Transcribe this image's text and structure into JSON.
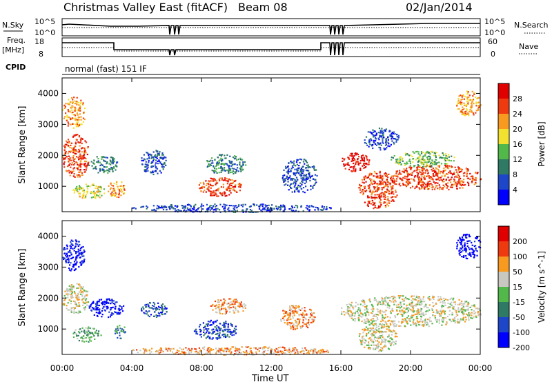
{
  "header": {
    "station": "Christmas Valley East (fitACF)",
    "beam": "Beam 08",
    "date": "02/Jan/2014"
  },
  "top_panels": {
    "nsky_label": "N.Sky",
    "nsky_ticks": [
      "10^5",
      "10^0"
    ],
    "nsearch_label": "N.Search",
    "freq_label_1": "Freq.",
    "freq_label_2": "[MHz]",
    "freq_ticks": [
      "18",
      "8"
    ],
    "nave_ticks": [
      "60",
      "0"
    ],
    "nave_label": "Nave",
    "cpid_label": "CPID",
    "cpid_value": "normal (fast) 151 IF"
  },
  "chart_data": [
    {
      "type": "heatmap",
      "quantity": "Power",
      "ylabel": "Slant Range [km]",
      "xlabel": "Time UT",
      "x_ticks": [
        "00:00",
        "04:00",
        "08:00",
        "12:00",
        "16:00",
        "20:00",
        "00:00"
      ],
      "xlim_hours": [
        0,
        24
      ],
      "y_ticks": [
        1000,
        2000,
        3000,
        4000
      ],
      "ylim": [
        180,
        4500
      ],
      "colorbar": {
        "label": "Power [dB]",
        "ticks": [
          "4",
          "8",
          "12",
          "16",
          "20",
          "24",
          "28"
        ],
        "colors": [
          "#0000ff",
          "#1e46c8",
          "#2f7a64",
          "#52b84a",
          "#f2e12e",
          "#f79a1f",
          "#ef3a10",
          "#e00000"
        ]
      },
      "regions": [
        {
          "t0": 0.0,
          "t1": 1.3,
          "r0": 2900,
          "r1": 3900,
          "level": 5
        },
        {
          "t0": 0.0,
          "t1": 1.5,
          "r0": 1300,
          "r1": 2700,
          "level": 6
        },
        {
          "t0": 0.6,
          "t1": 2.4,
          "r0": 600,
          "r1": 1100,
          "level": 4
        },
        {
          "t0": 1.5,
          "t1": 3.2,
          "r0": 1450,
          "r1": 2000,
          "level": 2
        },
        {
          "t0": 2.6,
          "t1": 3.6,
          "r0": 650,
          "r1": 1200,
          "level": 5
        },
        {
          "t0": 4.5,
          "t1": 6.0,
          "r0": 1400,
          "r1": 2200,
          "level": 1
        },
        {
          "t0": 7.8,
          "t1": 10.3,
          "r0": 700,
          "r1": 1300,
          "level": 6
        },
        {
          "t0": 8.2,
          "t1": 10.5,
          "r0": 1400,
          "r1": 2050,
          "level": 2
        },
        {
          "t0": 12.6,
          "t1": 14.6,
          "r0": 800,
          "r1": 1900,
          "level": 1
        },
        {
          "t0": 16.0,
          "t1": 17.6,
          "r0": 1500,
          "r1": 2100,
          "level": 7
        },
        {
          "t0": 17.0,
          "t1": 19.2,
          "r0": 300,
          "r1": 1500,
          "level": 6
        },
        {
          "t0": 18.8,
          "t1": 24.0,
          "r0": 900,
          "r1": 1700,
          "level": 6
        },
        {
          "t0": 18.8,
          "t1": 22.5,
          "r0": 1650,
          "r1": 2150,
          "level": 3
        },
        {
          "t0": 17.3,
          "t1": 19.3,
          "r0": 2200,
          "r1": 2900,
          "level": 1
        },
        {
          "t0": 22.6,
          "t1": 24.0,
          "r0": 3300,
          "r1": 4100,
          "level": 5
        },
        {
          "t0": 4.0,
          "t1": 15.5,
          "r0": 180,
          "r1": 450,
          "level": 1
        }
      ]
    },
    {
      "type": "heatmap",
      "quantity": "Velocity",
      "ylabel": "Slant Range [km]",
      "xlabel": "Time UT",
      "x_ticks": [
        "00:00",
        "04:00",
        "08:00",
        "12:00",
        "16:00",
        "20:00",
        "00:00"
      ],
      "xlim_hours": [
        0,
        24
      ],
      "y_ticks": [
        1000,
        2000,
        3000,
        4000
      ],
      "ylim": [
        180,
        4500
      ],
      "colorbar": {
        "label": "Velocity [m s^-1]",
        "ticks": [
          "200",
          "100",
          "50",
          "15",
          "-15",
          "-50",
          "-100",
          "-200"
        ],
        "colors": [
          "#0000ff",
          "#1e46c8",
          "#2f7a64",
          "#52b84a",
          "#c8c8c0",
          "#f79a1f",
          "#ef3a10",
          "#e00000"
        ]
      },
      "regions": [
        {
          "t0": 0.0,
          "t1": 1.3,
          "r0": 2900,
          "r1": 3900,
          "level": 0
        },
        {
          "t0": 0.0,
          "t1": 1.5,
          "r0": 1500,
          "r1": 2500,
          "level": 4
        },
        {
          "t0": 0.6,
          "t1": 2.2,
          "r0": 600,
          "r1": 1100,
          "level": 3
        },
        {
          "t0": 1.5,
          "t1": 3.5,
          "r0": 1400,
          "r1": 2000,
          "level": 0
        },
        {
          "t0": 3.0,
          "t1": 3.6,
          "r0": 700,
          "r1": 1200,
          "level": 2
        },
        {
          "t0": 4.5,
          "t1": 6.0,
          "r0": 1400,
          "r1": 1900,
          "level": 1
        },
        {
          "t0": 7.5,
          "t1": 10.0,
          "r0": 700,
          "r1": 1300,
          "level": 1
        },
        {
          "t0": 8.5,
          "t1": 10.5,
          "r0": 1500,
          "r1": 2000,
          "level": 5
        },
        {
          "t0": 12.5,
          "t1": 14.5,
          "r0": 1000,
          "r1": 1800,
          "level": 5
        },
        {
          "t0": 16.0,
          "t1": 24.0,
          "r0": 1100,
          "r1": 2100,
          "level": 4
        },
        {
          "t0": 17.0,
          "t1": 19.2,
          "r0": 300,
          "r1": 1200,
          "level": 4
        },
        {
          "t0": 22.6,
          "t1": 24.0,
          "r0": 3300,
          "r1": 4100,
          "level": 0
        },
        {
          "t0": 4.0,
          "t1": 15.5,
          "r0": 180,
          "r1": 450,
          "level": 5
        }
      ]
    }
  ]
}
